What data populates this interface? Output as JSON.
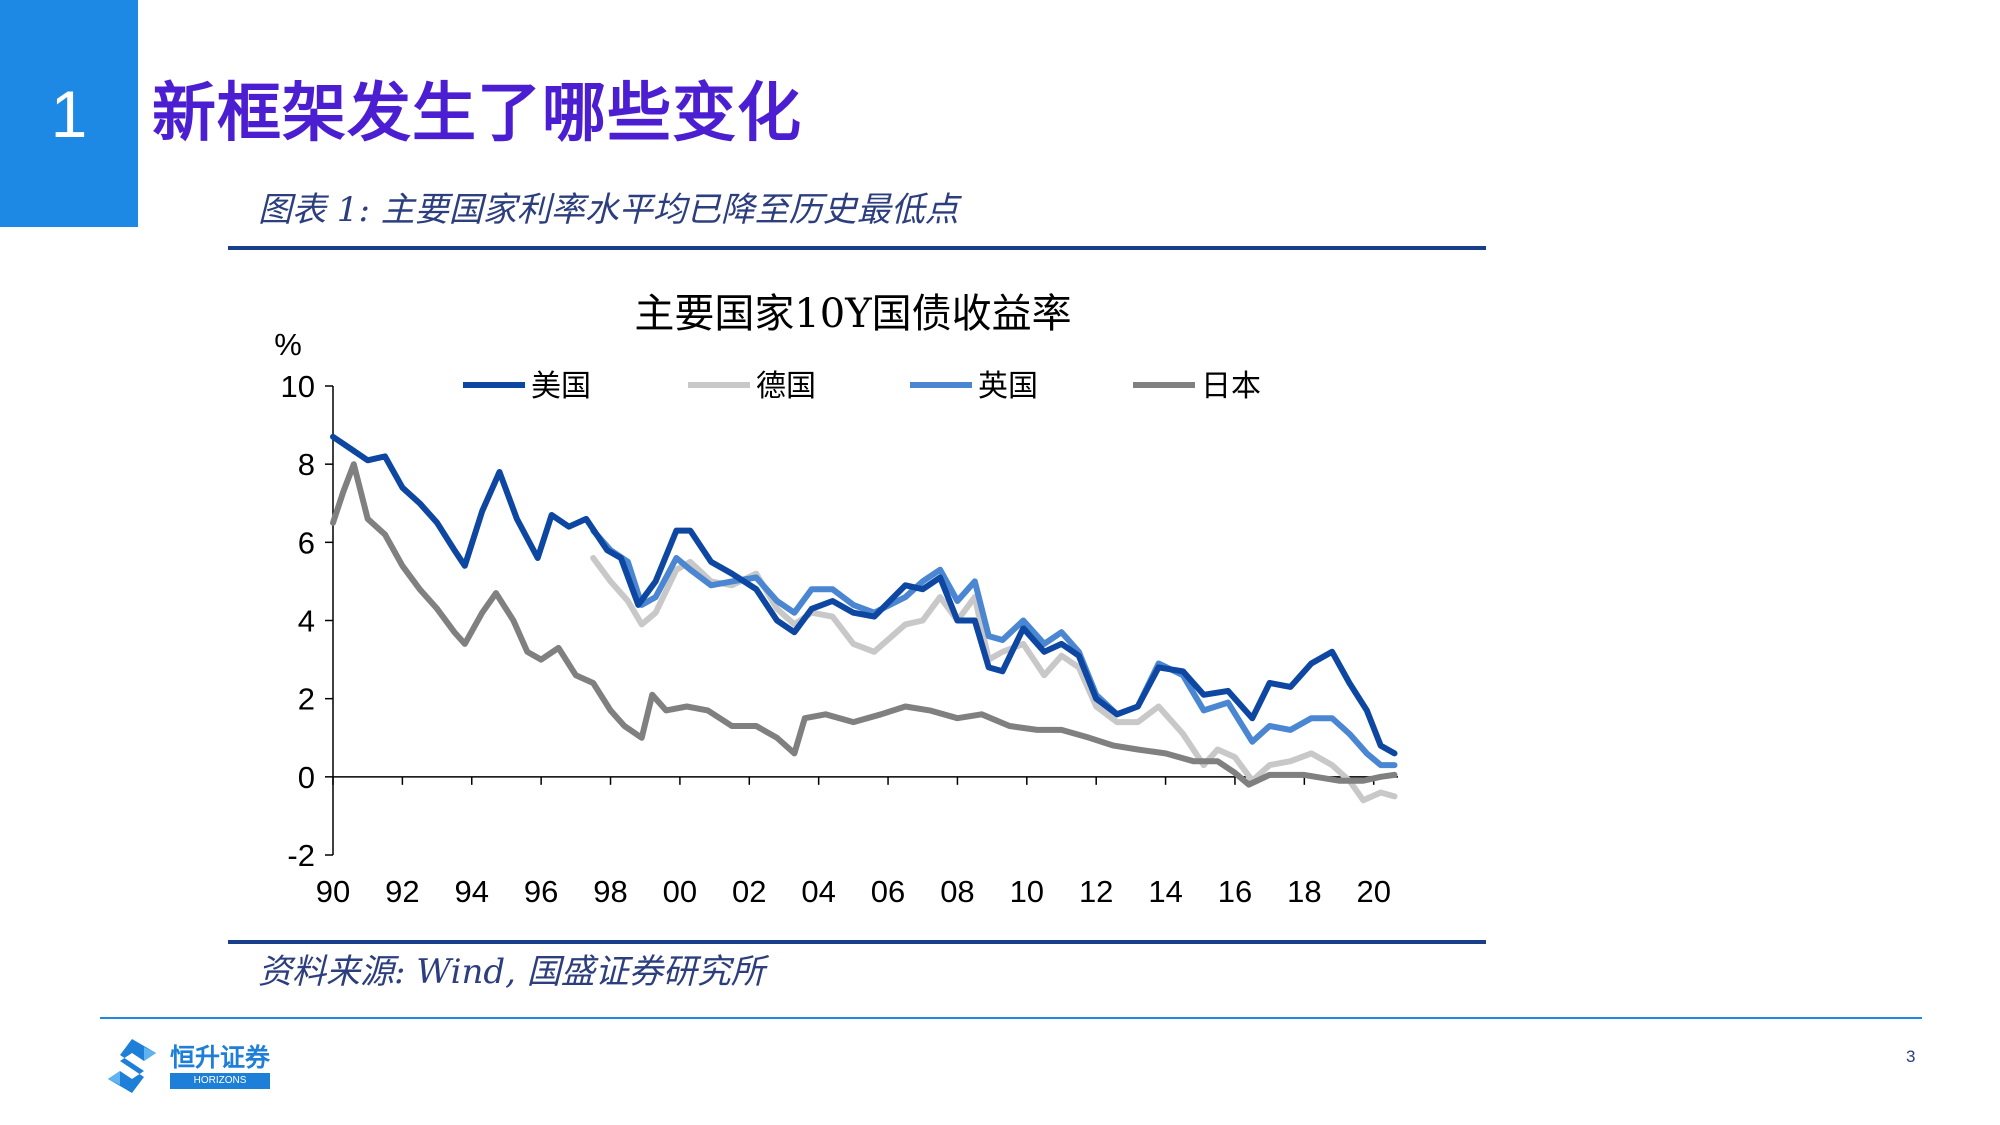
{
  "slide": {
    "section_number": "1",
    "title": "新框架发生了哪些变化",
    "figure_caption": "图表 1:  主要国家利率水平均已降至历史最低点",
    "source_note": "资料来源:  Wind,  国盛证券研究所",
    "page_number": "3"
  },
  "logo": {
    "name": "恒升证券",
    "subtitle": "HORIZONS SECURITIES",
    "icon": "horizons-logo-icon"
  },
  "colors": {
    "accent": "#1e88e5",
    "title": "#4b1fd1",
    "caption": "#2c3e7e"
  },
  "chart_data": {
    "type": "line",
    "title": "主要国家10Y国债收益率",
    "ylabel": "%",
    "xlabel": "",
    "ylim": [
      -2,
      10
    ],
    "xlim": [
      1990,
      2020.7
    ],
    "yticks": [
      "10",
      "8",
      "6",
      "4",
      "2",
      "0",
      "-2"
    ],
    "xticks": [
      "90",
      "92",
      "94",
      "96",
      "98",
      "00",
      "02",
      "04",
      "06",
      "08",
      "10",
      "12",
      "14",
      "16",
      "18",
      "20"
    ],
    "grid": false,
    "legend_position": "top",
    "series": [
      {
        "name": "美国",
        "color": "#0d47a1",
        "x": [
          1990.0,
          1990.5,
          1991.0,
          1991.5,
          1992.0,
          1992.5,
          1993.0,
          1993.5,
          1993.8,
          1994.3,
          1994.8,
          1995.3,
          1995.9,
          1996.3,
          1996.8,
          1997.3,
          1997.9,
          1998.3,
          1998.8,
          1999.3,
          1999.9,
          2000.3,
          2000.9,
          2001.5,
          2002.2,
          2002.8,
          2003.3,
          2003.8,
          2004.4,
          2005.0,
          2005.6,
          2006.5,
          2007.0,
          2007.5,
          2008.0,
          2008.5,
          2008.9,
          2009.3,
          2009.9,
          2010.5,
          2011.0,
          2011.5,
          2012.0,
          2012.6,
          2013.2,
          2013.8,
          2014.5,
          2015.1,
          2015.8,
          2016.5,
          2017.0,
          2017.6,
          2018.2,
          2018.8,
          2019.3,
          2019.8,
          2020.2,
          2020.6
        ],
        "y": [
          8.7,
          8.4,
          8.1,
          8.2,
          7.4,
          7.0,
          6.5,
          5.8,
          5.4,
          6.8,
          7.8,
          6.6,
          5.6,
          6.7,
          6.4,
          6.6,
          5.8,
          5.6,
          4.4,
          5.0,
          6.3,
          6.3,
          5.5,
          5.2,
          4.8,
          4.0,
          3.7,
          4.3,
          4.5,
          4.2,
          4.1,
          4.9,
          4.8,
          5.1,
          4.0,
          4.0,
          2.8,
          2.7,
          3.8,
          3.2,
          3.4,
          3.1,
          2.0,
          1.6,
          1.8,
          2.8,
          2.7,
          2.1,
          2.2,
          1.5,
          2.4,
          2.3,
          2.9,
          3.2,
          2.4,
          1.7,
          0.8,
          0.6
        ]
      },
      {
        "name": "德国",
        "color": "#c8c8c8",
        "x": [
          1997.5,
          1998.0,
          1998.5,
          1998.9,
          1999.3,
          1999.9,
          2000.3,
          2000.9,
          2001.5,
          2002.2,
          2002.8,
          2003.3,
          2003.8,
          2004.4,
          2005.0,
          2005.6,
          2006.5,
          2007.0,
          2007.5,
          2008.0,
          2008.5,
          2008.9,
          2009.3,
          2009.9,
          2010.5,
          2011.0,
          2011.5,
          2012.0,
          2012.6,
          2013.2,
          2013.8,
          2014.5,
          2015.1,
          2015.5,
          2016.0,
          2016.5,
          2017.0,
          2017.6,
          2018.2,
          2018.8,
          2019.3,
          2019.7,
          2020.2,
          2020.6
        ],
        "y": [
          5.6,
          5.0,
          4.5,
          3.9,
          4.2,
          5.3,
          5.5,
          5.0,
          4.9,
          5.2,
          4.3,
          3.9,
          4.2,
          4.1,
          3.4,
          3.2,
          3.9,
          4.0,
          4.6,
          4.0,
          4.6,
          3.0,
          3.2,
          3.4,
          2.6,
          3.1,
          2.8,
          1.8,
          1.4,
          1.4,
          1.8,
          1.1,
          0.3,
          0.7,
          0.5,
          -0.1,
          0.3,
          0.4,
          0.6,
          0.3,
          -0.1,
          -0.6,
          -0.4,
          -0.5
        ]
      },
      {
        "name": "英国",
        "color": "#4a86d1",
        "x": [
          1997.5,
          1998.0,
          1998.5,
          1998.9,
          1999.3,
          1999.9,
          2000.3,
          2000.9,
          2001.5,
          2002.2,
          2002.8,
          2003.3,
          2003.8,
          2004.4,
          2005.0,
          2005.6,
          2006.5,
          2007.0,
          2007.5,
          2008.0,
          2008.5,
          2008.9,
          2009.3,
          2009.9,
          2010.5,
          2011.0,
          2011.5,
          2012.0,
          2012.6,
          2013.2,
          2013.8,
          2014.5,
          2015.1,
          2015.8,
          2016.5,
          2017.0,
          2017.6,
          2018.2,
          2018.8,
          2019.3,
          2019.8,
          2020.2,
          2020.6
        ],
        "y": [
          6.3,
          5.8,
          5.5,
          4.4,
          4.6,
          5.6,
          5.3,
          4.9,
          5.0,
          5.1,
          4.5,
          4.2,
          4.8,
          4.8,
          4.4,
          4.2,
          4.6,
          5.0,
          5.3,
          4.5,
          5.0,
          3.6,
          3.5,
          4.0,
          3.4,
          3.7,
          3.2,
          2.1,
          1.6,
          1.8,
          2.9,
          2.6,
          1.7,
          1.9,
          0.9,
          1.3,
          1.2,
          1.5,
          1.5,
          1.1,
          0.6,
          0.3,
          0.3
        ]
      },
      {
        "name": "日本",
        "color": "#808080",
        "x": [
          1990.0,
          1990.3,
          1990.6,
          1991.0,
          1991.5,
          1992.0,
          1992.5,
          1993.0,
          1993.5,
          1993.8,
          1994.3,
          1994.7,
          1995.2,
          1995.6,
          1996.0,
          1996.5,
          1997.0,
          1997.5,
          1998.0,
          1998.4,
          1998.9,
          1999.2,
          1999.6,
          2000.2,
          2000.8,
          2001.5,
          2002.2,
          2002.8,
          2003.3,
          2003.6,
          2004.2,
          2005.0,
          2005.8,
          2006.5,
          2007.2,
          2008.0,
          2008.7,
          2009.5,
          2010.3,
          2011.0,
          2011.8,
          2012.5,
          2013.2,
          2014.0,
          2014.8,
          2015.5,
          2016.0,
          2016.4,
          2017.0,
          2018.0,
          2019.0,
          2019.7,
          2020.2,
          2020.6
        ],
        "y": [
          6.5,
          7.3,
          8.0,
          6.6,
          6.2,
          5.4,
          4.8,
          4.3,
          3.7,
          3.4,
          4.2,
          4.7,
          4.0,
          3.2,
          3.0,
          3.3,
          2.6,
          2.4,
          1.7,
          1.3,
          1.0,
          2.1,
          1.7,
          1.8,
          1.7,
          1.3,
          1.3,
          1.0,
          0.6,
          1.5,
          1.6,
          1.4,
          1.6,
          1.8,
          1.7,
          1.5,
          1.6,
          1.3,
          1.2,
          1.2,
          1.0,
          0.8,
          0.7,
          0.6,
          0.4,
          0.4,
          0.1,
          -0.2,
          0.05,
          0.05,
          -0.1,
          -0.1,
          0.0,
          0.05
        ]
      }
    ]
  }
}
